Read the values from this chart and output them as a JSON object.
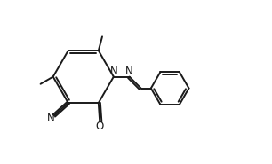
{
  "bg_color": "#ffffff",
  "line_color": "#1a1a1a",
  "line_width": 1.4,
  "figsize": [
    3.06,
    1.85
  ],
  "dpi": 100,
  "xlim": [
    0.0,
    10.0
  ],
  "ylim": [
    0.0,
    6.2
  ]
}
